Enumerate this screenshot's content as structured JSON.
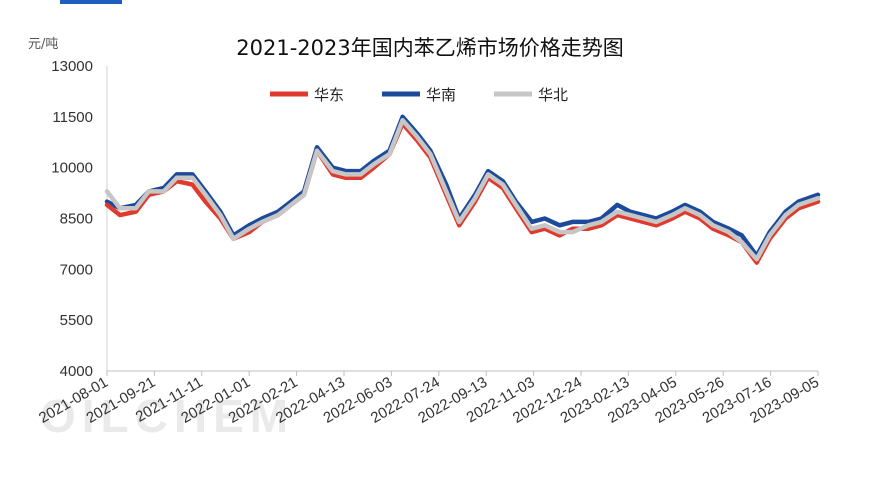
{
  "chart_data": {
    "type": "line",
    "title": "2021-2023年国内苯乙烯市场价格走势图",
    "ylabel": "元/吨",
    "xlabel": "",
    "ylim": [
      4000,
      13000
    ],
    "yticks": [
      4000,
      5500,
      7000,
      8500,
      10000,
      11500,
      13000
    ],
    "x_range": [
      "2021-08-01",
      "2023-09-05"
    ],
    "xticks": [
      "2021-08-01",
      "2021-09-21",
      "2021-11-11",
      "2022-01-01",
      "2022-02-21",
      "2022-04-13",
      "2022-06-03",
      "2022-07-24",
      "2022-09-13",
      "2022-11-03",
      "2022-12-24",
      "2023-02-13",
      "2023-04-05",
      "2023-05-26",
      "2023-07-16",
      "2023-09-05"
    ],
    "grid": false,
    "legend_position": "top-center",
    "watermark": "OILCHEM",
    "x": [
      "2021-08-01",
      "2021-08-15",
      "2021-09-01",
      "2021-09-15",
      "2021-10-01",
      "2021-10-15",
      "2021-11-01",
      "2021-11-15",
      "2021-12-01",
      "2021-12-15",
      "2022-01-01",
      "2022-01-15",
      "2022-02-01",
      "2022-02-15",
      "2022-03-01",
      "2022-03-15",
      "2022-04-01",
      "2022-04-15",
      "2022-05-01",
      "2022-05-15",
      "2022-06-01",
      "2022-06-15",
      "2022-07-01",
      "2022-07-15",
      "2022-08-01",
      "2022-08-15",
      "2022-09-01",
      "2022-09-15",
      "2022-10-01",
      "2022-10-15",
      "2022-11-01",
      "2022-11-15",
      "2022-12-01",
      "2022-12-15",
      "2023-01-01",
      "2023-01-15",
      "2023-02-01",
      "2023-02-15",
      "2023-03-01",
      "2023-03-15",
      "2023-04-01",
      "2023-04-15",
      "2023-05-01",
      "2023-05-15",
      "2023-06-01",
      "2023-06-15",
      "2023-07-01",
      "2023-07-15",
      "2023-08-01",
      "2023-08-15",
      "2023-09-05"
    ],
    "series": [
      {
        "name": "华东",
        "color": "#e03a2e",
        "values": [
          8900,
          8600,
          8700,
          9200,
          9300,
          9600,
          9500,
          9000,
          8500,
          7900,
          8100,
          8400,
          8600,
          8900,
          9200,
          10500,
          9800,
          9700,
          9700,
          10000,
          10400,
          11300,
          10800,
          10300,
          9200,
          8300,
          9000,
          9700,
          9400,
          8800,
          8100,
          8200,
          8000,
          8200,
          8200,
          8300,
          8600,
          8500,
          8400,
          8300,
          8500,
          8700,
          8500,
          8200,
          8000,
          7800,
          7200,
          7900,
          8500,
          8800,
          9000
        ]
      },
      {
        "name": "华南",
        "color": "#1c4b9c",
        "values": [
          9000,
          8800,
          8900,
          9300,
          9400,
          9800,
          9800,
          9300,
          8700,
          8000,
          8300,
          8500,
          8700,
          9000,
          9300,
          10600,
          10000,
          9900,
          9900,
          10200,
          10500,
          11500,
          11000,
          10500,
          9500,
          8500,
          9200,
          9900,
          9600,
          9000,
          8400,
          8500,
          8300,
          8400,
          8400,
          8500,
          8900,
          8700,
          8600,
          8500,
          8700,
          8900,
          8700,
          8400,
          8200,
          8000,
          7400,
          8100,
          8700,
          9000,
          9200
        ]
      },
      {
        "name": "华北",
        "color": "#c6c6c6",
        "values": [
          9300,
          8800,
          8800,
          9300,
          9300,
          9700,
          9700,
          9200,
          8600,
          7900,
          8200,
          8400,
          8600,
          8900,
          9200,
          10500,
          9900,
          9800,
          9800,
          10100,
          10400,
          11400,
          10900,
          10400,
          9300,
          8400,
          9100,
          9800,
          9500,
          8900,
          8200,
          8300,
          8100,
          8100,
          8300,
          8400,
          8700,
          8600,
          8500,
          8400,
          8600,
          8800,
          8600,
          8300,
          8100,
          7800,
          7300,
          8000,
          8600,
          8900,
          9100
        ]
      }
    ]
  }
}
